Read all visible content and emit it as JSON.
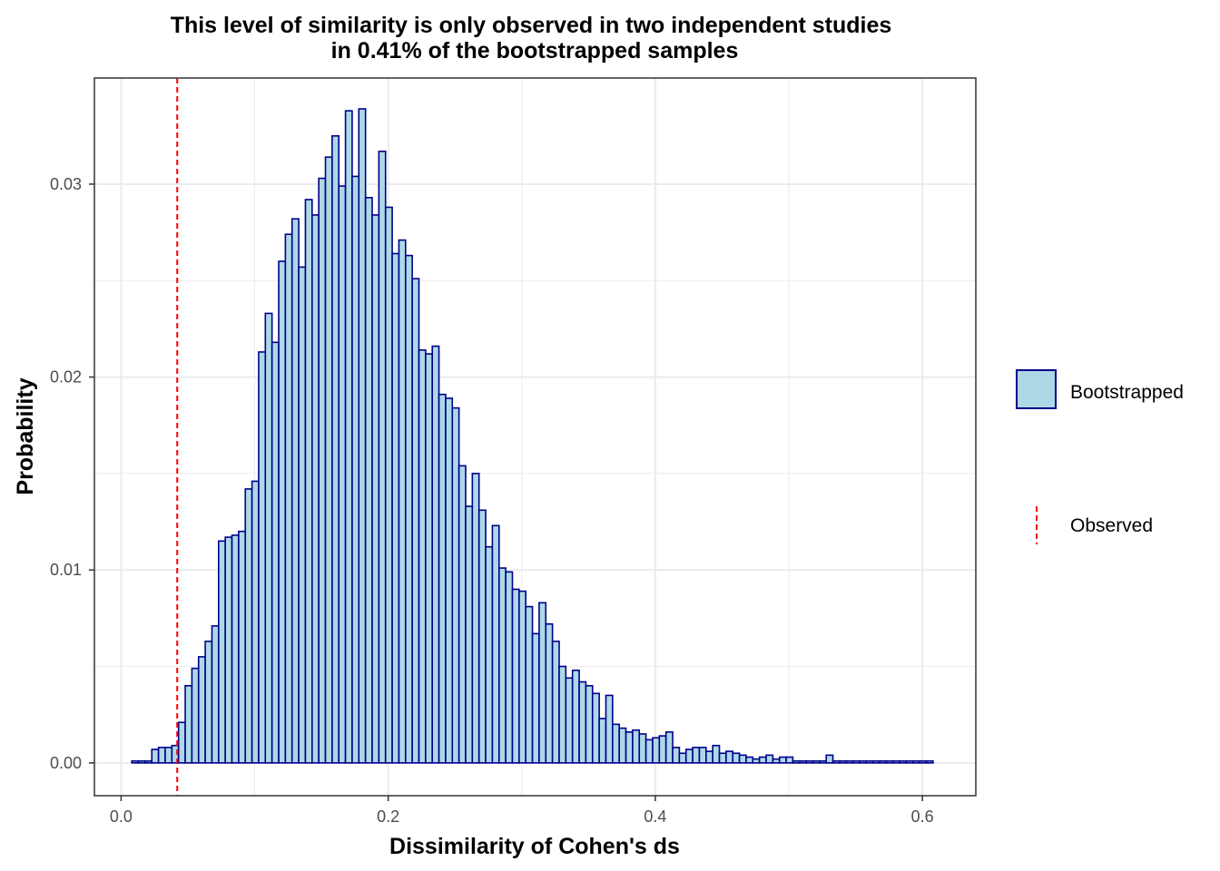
{
  "chart_data": {
    "type": "bar",
    "title_line1": "This level of similarity is only observed in two independent studies",
    "title_line2": "in 0.41% of the bootstrapped samples",
    "xlabel": "Dissimilarity of Cohen's ds",
    "ylabel": "Probability",
    "xlim": [
      -0.02,
      0.64
    ],
    "ylim": [
      -0.0017,
      0.0355
    ],
    "x_ticks": [
      0.0,
      0.2,
      0.4,
      0.6
    ],
    "x_tick_labels": [
      "0.0",
      "0.2",
      "0.4",
      "0.6"
    ],
    "y_ticks": [
      0.0,
      0.01,
      0.02,
      0.03
    ],
    "y_tick_labels": [
      "0.00",
      "0.01",
      "0.02",
      "0.03"
    ],
    "grid": true,
    "legend_position": "right",
    "bin_start": 0.008,
    "bin_width": 0.005,
    "values": [
      0.0001,
      0.0001,
      0.0001,
      0.0007,
      0.0008,
      0.0008,
      0.0009,
      0.0021,
      0.004,
      0.0049,
      0.0055,
      0.0063,
      0.0071,
      0.0115,
      0.0117,
      0.0118,
      0.012,
      0.0142,
      0.0146,
      0.0213,
      0.0233,
      0.0218,
      0.026,
      0.0274,
      0.0282,
      0.0257,
      0.0292,
      0.0284,
      0.0303,
      0.0314,
      0.0325,
      0.0299,
      0.0338,
      0.0304,
      0.0339,
      0.0293,
      0.0284,
      0.0317,
      0.0288,
      0.0264,
      0.0271,
      0.0263,
      0.0251,
      0.0214,
      0.0212,
      0.0216,
      0.0191,
      0.0189,
      0.0184,
      0.0154,
      0.0133,
      0.015,
      0.0131,
      0.0112,
      0.0123,
      0.0101,
      0.0099,
      0.009,
      0.0089,
      0.0081,
      0.0067,
      0.0083,
      0.0072,
      0.0063,
      0.005,
      0.0044,
      0.0048,
      0.0042,
      0.004,
      0.0036,
      0.0023,
      0.0035,
      0.002,
      0.0018,
      0.0016,
      0.0017,
      0.0015,
      0.0012,
      0.0013,
      0.0014,
      0.0016,
      0.0008,
      0.0005,
      0.0007,
      0.0008,
      0.0008,
      0.0006,
      0.0009,
      0.0005,
      0.0006,
      0.0005,
      0.0004,
      0.0003,
      0.0002,
      0.0003,
      0.0004,
      0.0002,
      0.0003,
      0.0003,
      0.0001,
      0.0001,
      0.0001,
      0.0001,
      0.0001,
      0.0004,
      0.0001,
      0.0001,
      0.0001,
      0.0001,
      0.0001,
      0.0001,
      0.0001,
      0.0001,
      0.0001,
      0.0001,
      0.0001,
      0.0001,
      0.0001,
      0.0001,
      0.0001
    ],
    "observed_x": 0.042,
    "series": [
      {
        "name": "Bootstrapped",
        "fill": "#add8e6",
        "stroke": "#00008b"
      },
      {
        "name": "Observed",
        "stroke": "#ff0000"
      }
    ]
  },
  "colors": {
    "grid": "#ebebeb",
    "panel_border": "#333333"
  }
}
